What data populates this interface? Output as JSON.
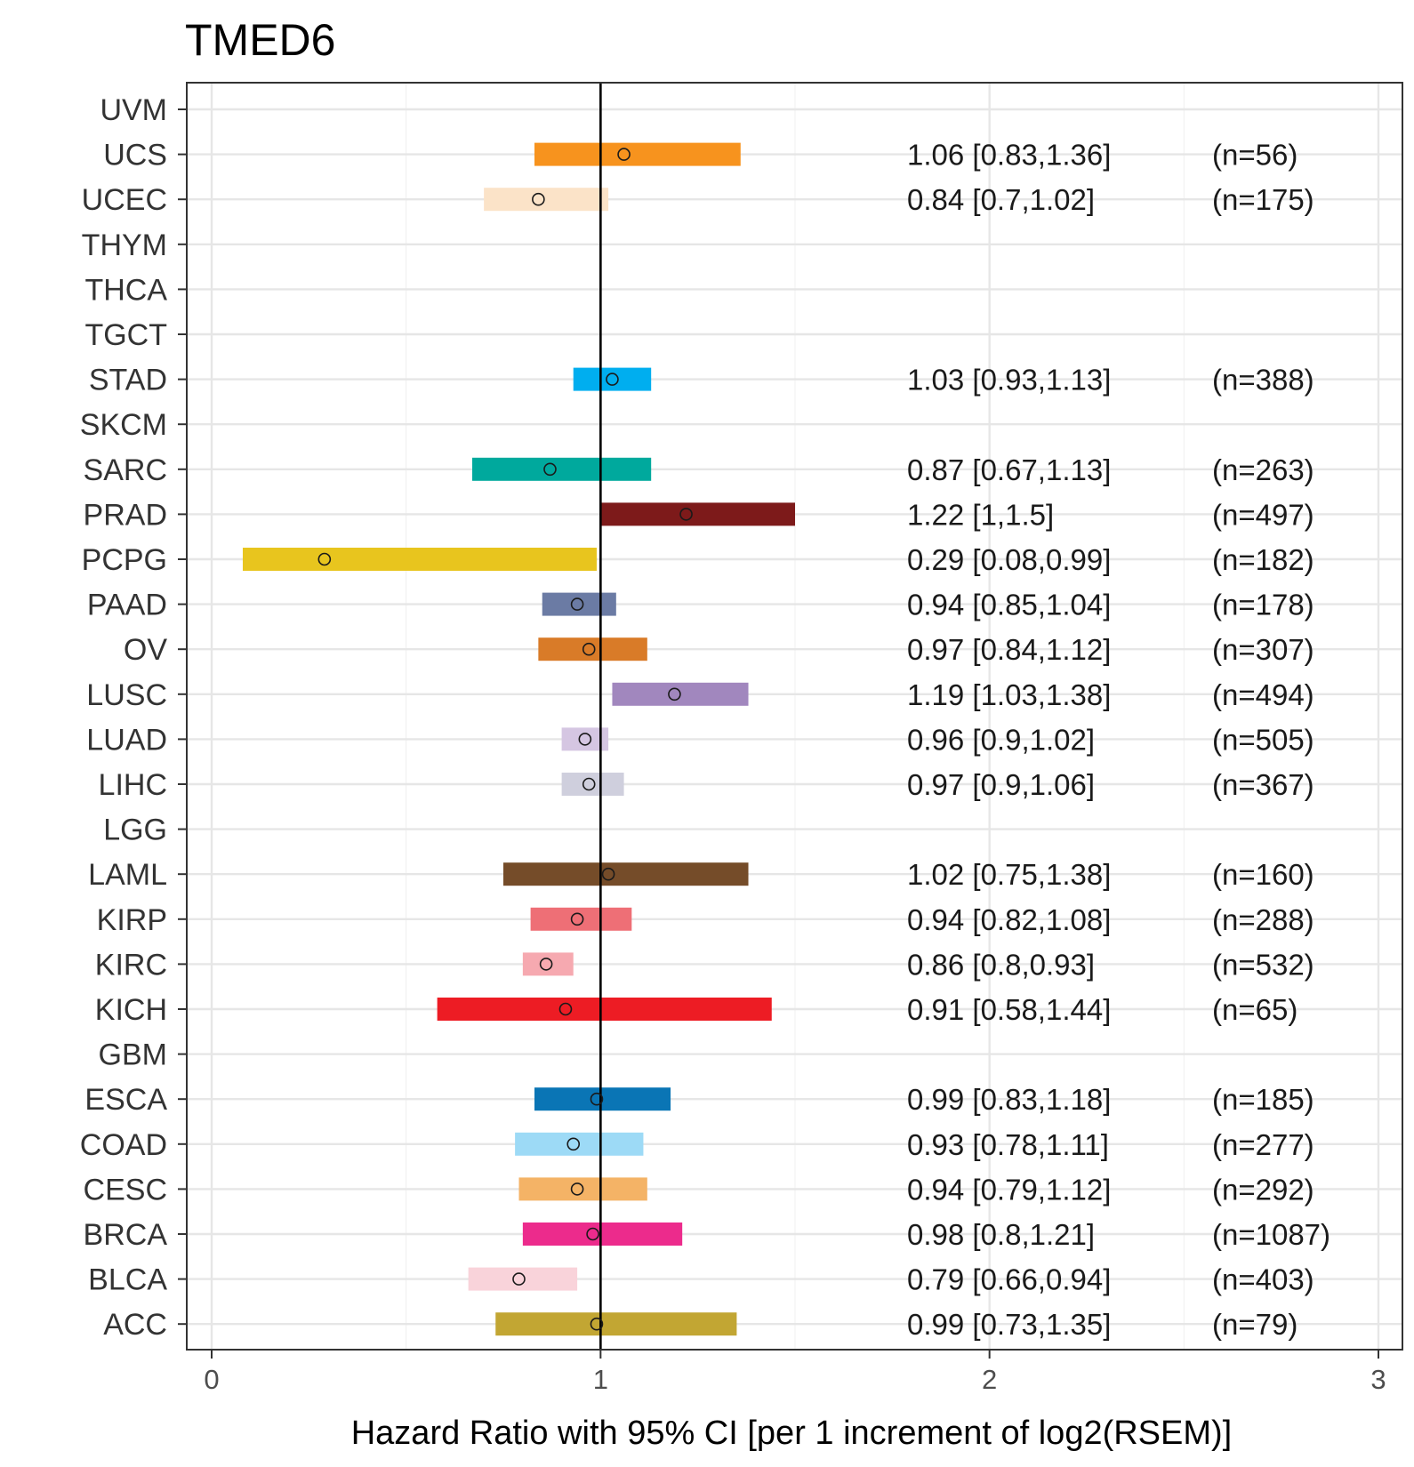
{
  "chart_data": {
    "type": "forest",
    "title": "TMED6",
    "xlabel": "Hazard Ratio with 95% CI [per 1 increment of log2(RSEM)]",
    "ylabel": "",
    "xlim": [
      -0.07,
      3.07
    ],
    "xticks": [
      0,
      1,
      2,
      3
    ],
    "reference_line": 1,
    "grid": true,
    "categories": [
      "UVM",
      "UCS",
      "UCEC",
      "THYM",
      "THCA",
      "TGCT",
      "STAD",
      "SKCM",
      "SARC",
      "PRAD",
      "PCPG",
      "PAAD",
      "OV",
      "LUSC",
      "LUAD",
      "LIHC",
      "LGG",
      "LAML",
      "KIRP",
      "KIRC",
      "KICH",
      "GBM",
      "ESCA",
      "COAD",
      "CESC",
      "BRCA",
      "BLCA",
      "ACC"
    ],
    "rows": [
      {
        "name": "UVM",
        "hr": null,
        "low": null,
        "high": null,
        "color": "",
        "label": "",
        "n": ""
      },
      {
        "name": "UCS",
        "hr": 1.06,
        "low": 0.83,
        "high": 1.36,
        "color": "#F7931E",
        "label": "1.06 [0.83,1.36]",
        "n": "(n=56)"
      },
      {
        "name": "UCEC",
        "hr": 0.84,
        "low": 0.7,
        "high": 1.02,
        "color": "#FBE3C8",
        "label": "0.84 [0.7,1.02]",
        "n": "(n=175)"
      },
      {
        "name": "THYM",
        "hr": null,
        "low": null,
        "high": null,
        "color": "",
        "label": "",
        "n": ""
      },
      {
        "name": "THCA",
        "hr": null,
        "low": null,
        "high": null,
        "color": "",
        "label": "",
        "n": ""
      },
      {
        "name": "TGCT",
        "hr": null,
        "low": null,
        "high": null,
        "color": "",
        "label": "",
        "n": ""
      },
      {
        "name": "STAD",
        "hr": 1.03,
        "low": 0.93,
        "high": 1.13,
        "color": "#00AEEF",
        "label": "1.03 [0.93,1.13]",
        "n": "(n=388)"
      },
      {
        "name": "SKCM",
        "hr": null,
        "low": null,
        "high": null,
        "color": "",
        "label": "",
        "n": ""
      },
      {
        "name": "SARC",
        "hr": 0.87,
        "low": 0.67,
        "high": 1.13,
        "color": "#00A99D",
        "label": "0.87 [0.67,1.13]",
        "n": "(n=263)"
      },
      {
        "name": "PRAD",
        "hr": 1.22,
        "low": 1,
        "high": 1.5,
        "color": "#7D1A1A",
        "label": "1.22 [1,1.5]",
        "n": "(n=497)"
      },
      {
        "name": "PCPG",
        "hr": 0.29,
        "low": 0.08,
        "high": 0.99,
        "color": "#E8C51E",
        "label": "0.29 [0.08,0.99]",
        "n": "(n=182)"
      },
      {
        "name": "PAAD",
        "hr": 0.94,
        "low": 0.85,
        "high": 1.04,
        "color": "#6B7BA4",
        "label": "0.94 [0.85,1.04]",
        "n": "(n=178)"
      },
      {
        "name": "OV",
        "hr": 0.97,
        "low": 0.84,
        "high": 1.12,
        "color": "#D97B28",
        "label": "0.97 [0.84,1.12]",
        "n": "(n=307)"
      },
      {
        "name": "LUSC",
        "hr": 1.19,
        "low": 1.03,
        "high": 1.38,
        "color": "#A187BE",
        "label": "1.19 [1.03,1.38]",
        "n": "(n=494)"
      },
      {
        "name": "LUAD",
        "hr": 0.96,
        "low": 0.9,
        "high": 1.02,
        "color": "#D5C6E2",
        "label": "0.96 [0.9,1.02]",
        "n": "(n=505)"
      },
      {
        "name": "LIHC",
        "hr": 0.97,
        "low": 0.9,
        "high": 1.06,
        "color": "#CFCFDD",
        "label": "0.97 [0.9,1.06]",
        "n": "(n=367)"
      },
      {
        "name": "LGG",
        "hr": null,
        "low": null,
        "high": null,
        "color": "",
        "label": "",
        "n": ""
      },
      {
        "name": "LAML",
        "hr": 1.02,
        "low": 0.75,
        "high": 1.38,
        "color": "#754C29",
        "label": "1.02 [0.75,1.38]",
        "n": "(n=160)"
      },
      {
        "name": "KIRP",
        "hr": 0.94,
        "low": 0.82,
        "high": 1.08,
        "color": "#EE6F76",
        "label": "0.94 [0.82,1.08]",
        "n": "(n=288)"
      },
      {
        "name": "KIRC",
        "hr": 0.86,
        "low": 0.8,
        "high": 0.93,
        "color": "#F6A9B0",
        "label": "0.86 [0.8,0.93]",
        "n": "(n=532)"
      },
      {
        "name": "KICH",
        "hr": 0.91,
        "low": 0.58,
        "high": 1.44,
        "color": "#ED1C24",
        "label": "0.91 [0.58,1.44]",
        "n": "(n=65)"
      },
      {
        "name": "GBM",
        "hr": null,
        "low": null,
        "high": null,
        "color": "",
        "label": "",
        "n": ""
      },
      {
        "name": "ESCA",
        "hr": 0.99,
        "low": 0.83,
        "high": 1.18,
        "color": "#0A75B5",
        "label": "0.99 [0.83,1.18]",
        "n": "(n=185)"
      },
      {
        "name": "COAD",
        "hr": 0.93,
        "low": 0.78,
        "high": 1.11,
        "color": "#9DDAF6",
        "label": "0.93 [0.78,1.11]",
        "n": "(n=277)"
      },
      {
        "name": "CESC",
        "hr": 0.94,
        "low": 0.79,
        "high": 1.12,
        "color": "#F4B366",
        "label": "0.94 [0.79,1.12]",
        "n": "(n=292)"
      },
      {
        "name": "BRCA",
        "hr": 0.98,
        "low": 0.8,
        "high": 1.21,
        "color": "#EC2B8C",
        "label": "0.98 [0.8,1.21]",
        "n": "(n=1087)"
      },
      {
        "name": "BLCA",
        "hr": 0.79,
        "low": 0.66,
        "high": 0.94,
        "color": "#F9D3DA",
        "label": "0.79 [0.66,0.94]",
        "n": "(n=403)"
      },
      {
        "name": "ACC",
        "hr": 0.99,
        "low": 0.73,
        "high": 1.35,
        "color": "#C2A633",
        "label": "0.99 [0.73,1.35]",
        "n": "(n=79)"
      }
    ]
  }
}
